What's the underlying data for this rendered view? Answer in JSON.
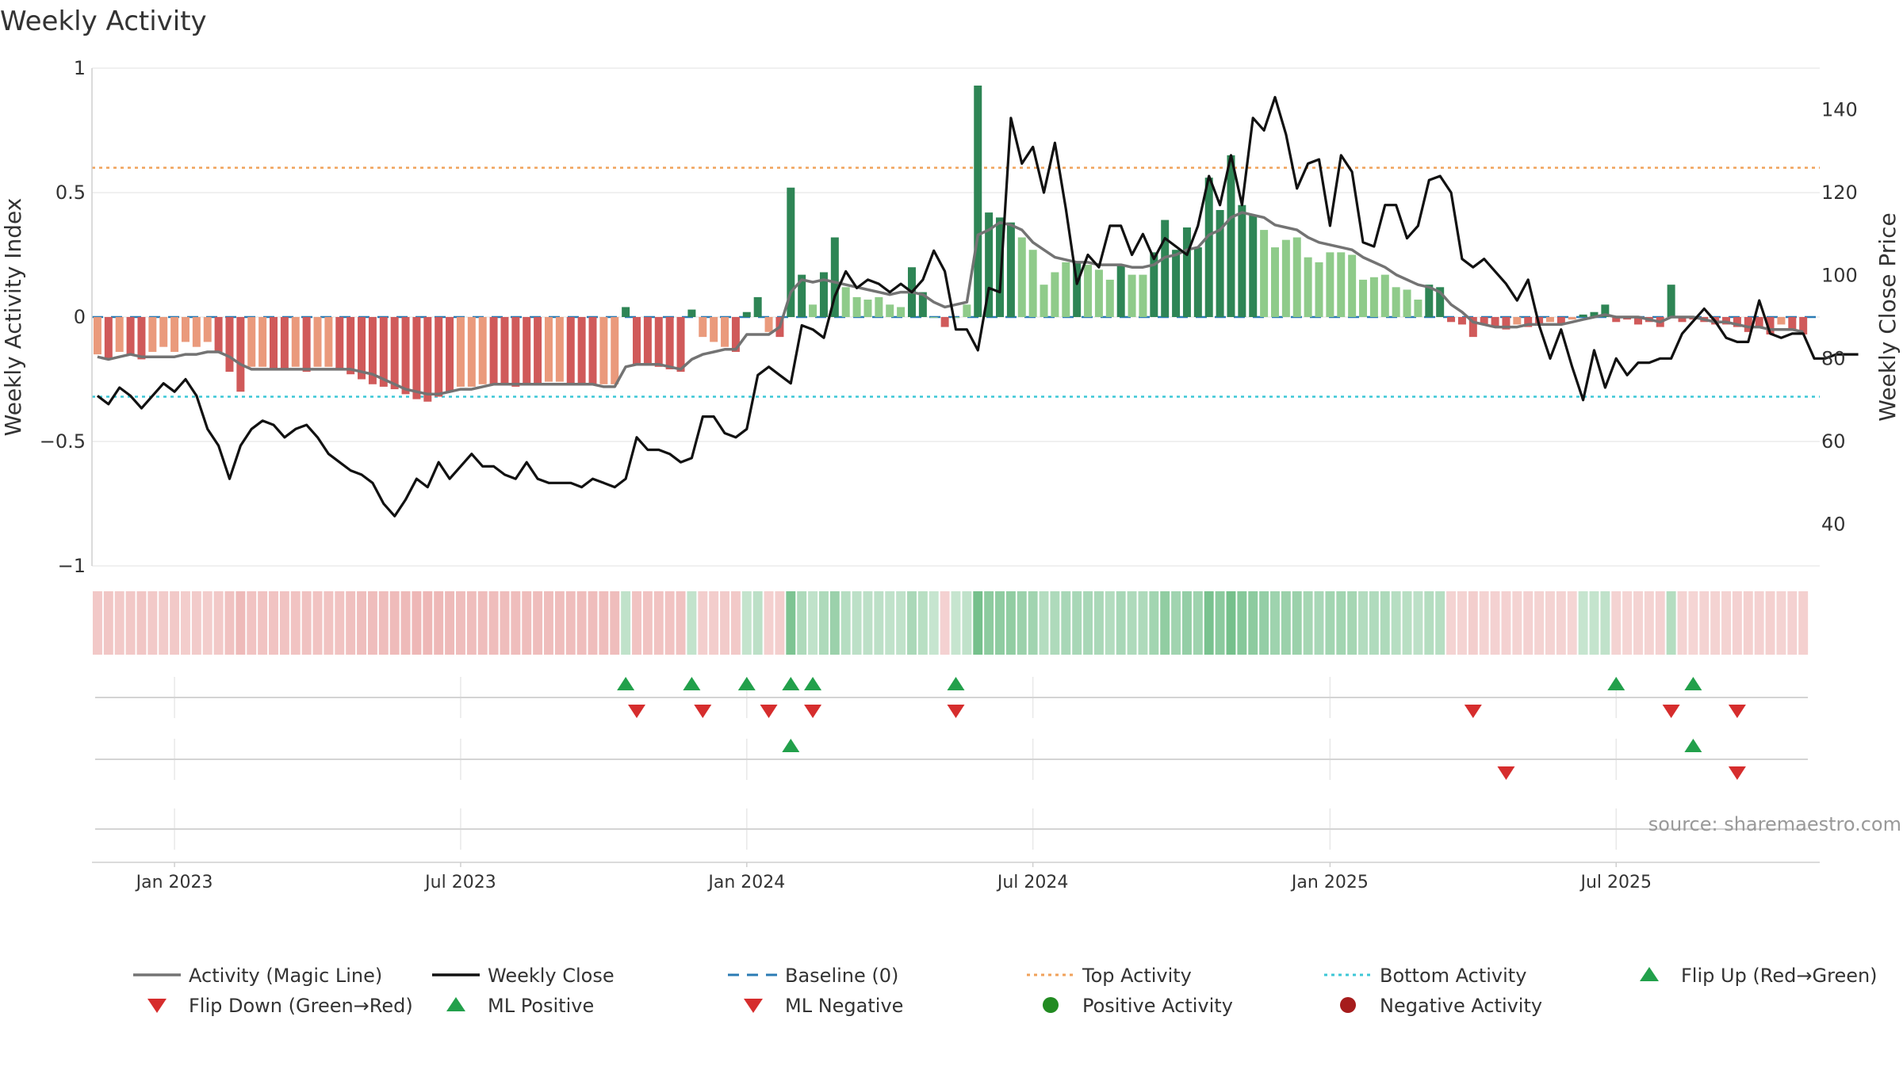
{
  "chart_data": {
    "type": "bar",
    "title": "Weekly Activity",
    "ylabel": "Weekly Activity Index",
    "ylabel_right": "Weekly Close Price",
    "ylim": [
      -1,
      1
    ],
    "ylim_right": [
      30,
      150
    ],
    "y_ticks": [
      {
        "value": 1,
        "label": "1"
      },
      {
        "value": 0.5,
        "label": "0.5"
      },
      {
        "value": 0,
        "label": "0"
      },
      {
        "value": -0.5,
        "label": "−0.5"
      },
      {
        "value": -1,
        "label": "−1"
      }
    ],
    "y_ticks_right": [
      {
        "value": 140,
        "label": "140"
      },
      {
        "value": 120,
        "label": "120"
      },
      {
        "value": 100,
        "label": "100"
      },
      {
        "value": 80,
        "label": "80"
      },
      {
        "value": 60,
        "label": "60"
      },
      {
        "value": 40,
        "label": "40"
      }
    ],
    "x_ticks": [
      {
        "week": 7,
        "label": "Jan 2023"
      },
      {
        "week": 33,
        "label": "Jul 2023"
      },
      {
        "week": 59,
        "label": "Jan 2024"
      },
      {
        "week": 85,
        "label": "Jul 2024"
      },
      {
        "week": 112,
        "label": "Jan 2025"
      },
      {
        "week": 138,
        "label": "Jul 2025"
      }
    ],
    "week_range": [
      -0.5,
      156.5
    ],
    "activity": [
      -0.15,
      -0.17,
      -0.14,
      -0.15,
      -0.17,
      -0.14,
      -0.12,
      -0.14,
      -0.1,
      -0.12,
      -0.1,
      -0.14,
      -0.22,
      -0.3,
      -0.2,
      -0.2,
      -0.21,
      -0.21,
      -0.2,
      -0.22,
      -0.2,
      -0.2,
      -0.21,
      -0.23,
      -0.25,
      -0.27,
      -0.28,
      -0.29,
      -0.31,
      -0.33,
      -0.34,
      -0.32,
      -0.3,
      -0.28,
      -0.28,
      -0.27,
      -0.27,
      -0.27,
      -0.28,
      -0.27,
      -0.27,
      -0.26,
      -0.26,
      -0.27,
      -0.27,
      -0.27,
      -0.27,
      -0.27,
      0.04,
      -0.19,
      -0.19,
      -0.2,
      -0.21,
      -0.22,
      0.03,
      -0.08,
      -0.1,
      -0.12,
      -0.14,
      0.02,
      0.08,
      -0.06,
      -0.08,
      0.52,
      0.17,
      0.05,
      0.18,
      0.32,
      0.12,
      0.08,
      0.07,
      0.08,
      0.05,
      0.04,
      0.2,
      0.1,
      0.0,
      -0.04,
      0.0,
      0.05,
      0.93,
      0.42,
      0.4,
      0.38,
      0.32,
      0.27,
      0.13,
      0.18,
      0.22,
      0.22,
      0.21,
      0.19,
      0.15,
      0.21,
      0.17,
      0.17,
      0.26,
      0.39,
      0.27,
      0.36,
      0.28,
      0.56,
      0.43,
      0.65,
      0.45,
      0.41,
      0.35,
      0.28,
      0.31,
      0.32,
      0.24,
      0.22,
      0.26,
      0.26,
      0.25,
      0.15,
      0.16,
      0.17,
      0.12,
      0.11,
      0.07,
      0.13,
      0.12,
      -0.02,
      -0.03,
      -0.08,
      -0.03,
      -0.04,
      -0.05,
      -0.03,
      -0.04,
      -0.03,
      -0.02,
      -0.03,
      -0.01,
      0.01,
      0.02,
      0.05,
      -0.02,
      -0.01,
      -0.03,
      -0.02,
      -0.04,
      0.13,
      -0.02,
      -0.01,
      -0.02,
      -0.03,
      -0.03,
      -0.04,
      -0.06,
      -0.04,
      -0.07,
      -0.03,
      -0.05,
      -0.07
    ],
    "magic_line": [
      -0.16,
      -0.17,
      -0.16,
      -0.15,
      -0.16,
      -0.16,
      -0.16,
      -0.16,
      -0.15,
      -0.15,
      -0.14,
      -0.14,
      -0.16,
      -0.19,
      -0.21,
      -0.21,
      -0.21,
      -0.21,
      -0.21,
      -0.21,
      -0.21,
      -0.21,
      -0.21,
      -0.21,
      -0.22,
      -0.23,
      -0.25,
      -0.27,
      -0.29,
      -0.3,
      -0.31,
      -0.31,
      -0.3,
      -0.29,
      -0.29,
      -0.28,
      -0.27,
      -0.27,
      -0.27,
      -0.27,
      -0.27,
      -0.27,
      -0.27,
      -0.27,
      -0.27,
      -0.27,
      -0.28,
      -0.28,
      -0.2,
      -0.19,
      -0.19,
      -0.19,
      -0.2,
      -0.21,
      -0.17,
      -0.15,
      -0.14,
      -0.13,
      -0.13,
      -0.07,
      -0.07,
      -0.07,
      -0.04,
      0.1,
      0.15,
      0.14,
      0.15,
      0.14,
      0.13,
      0.12,
      0.11,
      0.1,
      0.09,
      0.1,
      0.1,
      0.09,
      0.06,
      0.04,
      0.05,
      0.06,
      0.33,
      0.35,
      0.38,
      0.37,
      0.35,
      0.3,
      0.27,
      0.24,
      0.23,
      0.22,
      0.22,
      0.21,
      0.21,
      0.21,
      0.2,
      0.2,
      0.21,
      0.24,
      0.25,
      0.27,
      0.28,
      0.33,
      0.35,
      0.4,
      0.42,
      0.41,
      0.4,
      0.37,
      0.36,
      0.35,
      0.32,
      0.3,
      0.29,
      0.28,
      0.27,
      0.24,
      0.22,
      0.2,
      0.17,
      0.15,
      0.13,
      0.12,
      0.1,
      0.05,
      0.02,
      -0.02,
      -0.03,
      -0.04,
      -0.04,
      -0.04,
      -0.03,
      -0.03,
      -0.03,
      -0.03,
      -0.02,
      -0.01,
      0.0,
      0.01,
      0.0,
      0.0,
      0.0,
      -0.01,
      -0.02,
      0.0,
      0.0,
      0.0,
      -0.01,
      -0.02,
      -0.02,
      -0.03,
      -0.04,
      -0.04,
      -0.05,
      -0.05,
      -0.05,
      -0.06
    ],
    "weekly_close": [
      71,
      69,
      73,
      71,
      68,
      71,
      74,
      72,
      75,
      71,
      63,
      59,
      51,
      59,
      63,
      65,
      64,
      61,
      63,
      64,
      61,
      57,
      55,
      53,
      52,
      50,
      45,
      42,
      46,
      51,
      49,
      55,
      51,
      54,
      57,
      54,
      54,
      52,
      51,
      55,
      51,
      50,
      50,
      50,
      49,
      51,
      50,
      49,
      51,
      61,
      58,
      58,
      57,
      55,
      56,
      66,
      66,
      62,
      61,
      63,
      76,
      78,
      76,
      74,
      88,
      87,
      85,
      95,
      101,
      97,
      99,
      98,
      96,
      98,
      96,
      99,
      106,
      101,
      87,
      87,
      82,
      97,
      96,
      138,
      127,
      131,
      120,
      132,
      116,
      98,
      105,
      102,
      112,
      112,
      105,
      110,
      104,
      109,
      107,
      105,
      112,
      124,
      117,
      129,
      117,
      138,
      135,
      143,
      134,
      121,
      127,
      128,
      112,
      129,
      125,
      108,
      107,
      117,
      117,
      109,
      112,
      123,
      124,
      120,
      104,
      102,
      104,
      101,
      98,
      94,
      99,
      88,
      80,
      87,
      78,
      70,
      82,
      73,
      80,
      76,
      79,
      79,
      80,
      80,
      86,
      89,
      92,
      89,
      85,
      84,
      84,
      94,
      86,
      85,
      86,
      86,
      80,
      80,
      81,
      81,
      81
    ],
    "top_activity": 0.6,
    "bottom_activity": -0.32,
    "baseline": 0,
    "flip_up_weeks": [
      48,
      54,
      59,
      63,
      65,
      78,
      138,
      145
    ],
    "flip_down_weeks": [
      49,
      55,
      61,
      65,
      78,
      125,
      143,
      149
    ],
    "ml_positive_weeks": [
      63,
      145
    ],
    "ml_negative_weeks": [
      128,
      149
    ],
    "source": "source: sharemaestro.com",
    "legend": [
      {
        "label": "Activity (Magic Line)",
        "kind": "line",
        "color": "#737373"
      },
      {
        "label": "Weekly Close",
        "kind": "line",
        "color": "#111111"
      },
      {
        "label": "Baseline (0)",
        "kind": "dash",
        "color": "#2b7bb4"
      },
      {
        "label": "Top Activity",
        "kind": "dot",
        "color": "#f0a25a"
      },
      {
        "label": "Bottom Activity",
        "kind": "dot",
        "color": "#3cc7d6"
      },
      {
        "label": "Flip Up (Red→Green)",
        "kind": "up",
        "color": "#22a04b"
      },
      {
        "label": "Flip Down (Green→Red)",
        "kind": "down",
        "color": "#d62d2d"
      },
      {
        "label": "ML Positive",
        "kind": "up",
        "color": "#22a04b"
      },
      {
        "label": "ML Negative",
        "kind": "down",
        "color": "#d62d2d"
      },
      {
        "label": "Positive Activity",
        "kind": "circle",
        "color": "#228b22"
      },
      {
        "label": "Negative Activity",
        "kind": "circle",
        "color": "#a61c1c"
      }
    ],
    "colors": {
      "pos_dark": "#2e8555",
      "pos_light": "#8fcb8a",
      "neg_dark": "#d05a5a",
      "neg_light": "#ea9a7c",
      "magic": "#737373",
      "close": "#111111",
      "up": "#22a04b",
      "down": "#d62d2d"
    },
    "legend_placement": "bottom"
  }
}
